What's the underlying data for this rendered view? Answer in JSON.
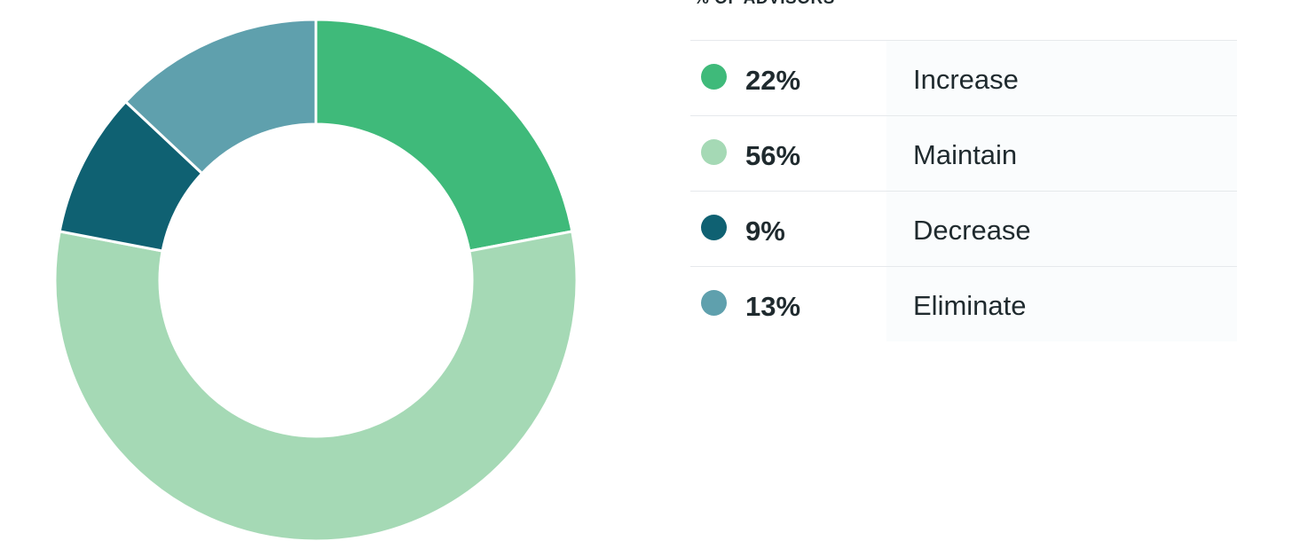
{
  "chart_data": {
    "type": "pie",
    "title": "% OF ADVISORS",
    "legend_position": "right",
    "series": [
      {
        "label": "Increase",
        "value": 22,
        "display": "22%",
        "color": "#3fba7a"
      },
      {
        "label": "Maintain",
        "value": 56,
        "display": "56%",
        "color": "#a5d9b5"
      },
      {
        "label": "Decrease",
        "value": 9,
        "display": "9%",
        "color": "#0f6172"
      },
      {
        "label": "Eliminate",
        "value": 13,
        "display": "13%",
        "color": "#5fa0ad"
      }
    ]
  }
}
